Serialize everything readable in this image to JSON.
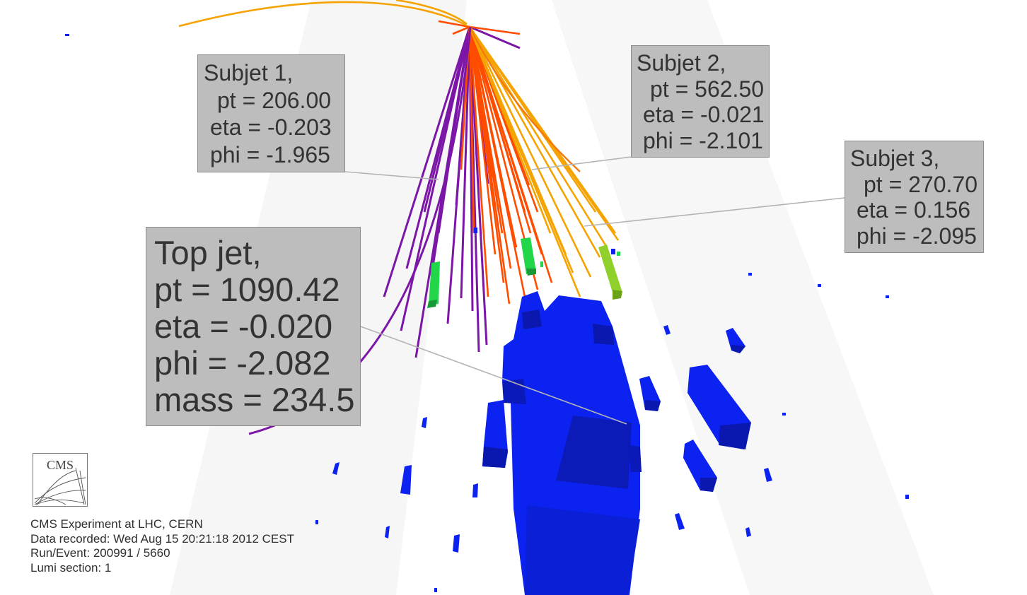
{
  "subjets": [
    {
      "title": "Subjet 1,",
      "pt": "pt = 206.00",
      "eta": "eta = -0.203",
      "phi": "phi = -1.965"
    },
    {
      "title": "Subjet 2,",
      "pt": "pt = 562.50",
      "eta": "eta = -0.021",
      "phi": "phi = -2.101"
    },
    {
      "title": "Subjet 3,",
      "pt": "pt = 270.70",
      "eta": "eta = 0.156",
      "phi": "phi = -2.095"
    }
  ],
  "top_jet": {
    "title": "Top jet,",
    "pt": "pt = 1090.42",
    "eta": "eta = -0.020",
    "phi": "phi = -2.082",
    "mass": "mass = 234.5"
  },
  "logo": {
    "text": "CMS"
  },
  "event_info": {
    "experiment": "CMS Experiment at LHC, CERN",
    "recorded": "Data recorded: Wed Aug 15 20:21:18 2012 CEST",
    "run_event": "Run/Event: 200991 / 5660",
    "lumi": "Lumi section: 1"
  },
  "colors": {
    "background": "#ffffff",
    "label_box": "#bdbdbd",
    "track_purple": "#7b16a6",
    "track_red": "#ff4d00",
    "track_orange": "#f5a300",
    "hcal_blue": "#0a22ee",
    "ecal_green": "#22d64a",
    "ecal_lime": "#8fd12a",
    "connector": "#b0b0b0"
  }
}
